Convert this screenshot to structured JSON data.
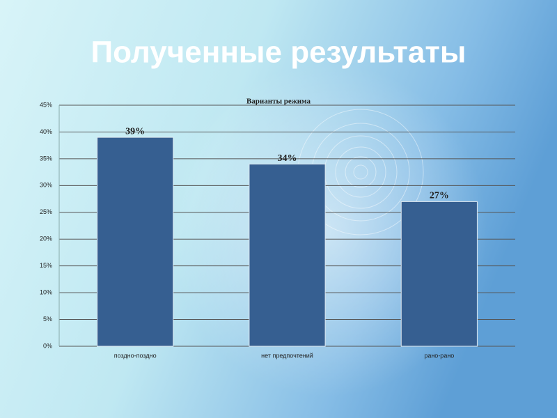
{
  "heading": "Полученные результаты",
  "chart_data": {
    "type": "bar",
    "title": "Варианты режима",
    "categories": [
      "поздно-поздно",
      "нет предпочтений",
      "рано-рано"
    ],
    "values": [
      39,
      34,
      27
    ],
    "value_labels": [
      "39%",
      "34%",
      "27%"
    ],
    "color": "#365f91",
    "ylim": [
      0,
      45
    ],
    "yticks": [
      {
        "value": 0,
        "label": "0%"
      },
      {
        "value": 5,
        "label": "5%"
      },
      {
        "value": 10,
        "label": "10%"
      },
      {
        "value": 15,
        "label": "15%"
      },
      {
        "value": 20,
        "label": "20%"
      },
      {
        "value": 25,
        "label": "25%"
      },
      {
        "value": 30,
        "label": "30%"
      },
      {
        "value": 35,
        "label": "35%"
      },
      {
        "value": 40,
        "label": "40%"
      },
      {
        "value": 45,
        "label": "45%"
      }
    ],
    "grid": true
  }
}
